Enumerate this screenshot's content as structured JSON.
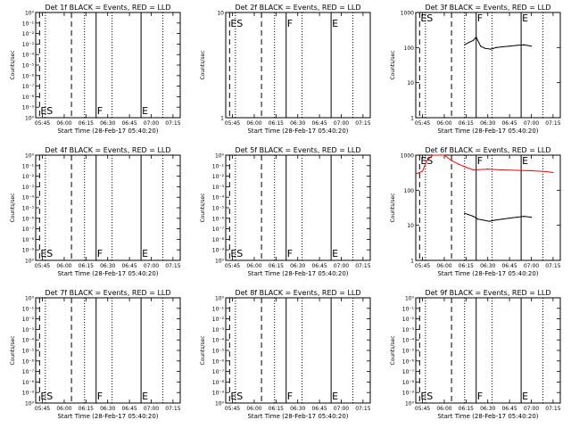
{
  "chart_data": [
    {
      "id": "1f",
      "type": "line",
      "title": "Det 1f BLACK = Events, RED = LLD",
      "ylabel": "Counts/sec",
      "xlabel": "Start Time (28-Feb-17 05:40:20)",
      "yscale": "log",
      "ylim": [
        1,
        10
      ],
      "y_ticks": [
        "10⁰",
        "10⁻¹",
        "10⁻²",
        "10⁻³",
        "10⁻⁴",
        "10⁻⁵",
        "10⁻⁶",
        "10⁻⁷",
        "10⁻⁸",
        "10⁻⁹",
        "10⁰"
      ],
      "x_ticks": [
        "05:45",
        "06:00",
        "06:15",
        "06:30",
        "06:45",
        "07:00",
        "07:15"
      ],
      "markers": [
        {
          "label": "ES",
          "style": "dashed",
          "time": "05:43"
        },
        {
          "label": "",
          "style": "dotted",
          "time": "05:47"
        },
        {
          "label": "",
          "style": "dashed",
          "time": "06:05"
        },
        {
          "label": "",
          "style": "dotted",
          "time": "06:14"
        },
        {
          "label": "F",
          "style": "solid",
          "time": "06:22"
        },
        {
          "label": "",
          "style": "dotted",
          "time": "06:33"
        },
        {
          "label": "E",
          "style": "solid",
          "time": "06:53"
        },
        {
          "label": "",
          "style": "dotted",
          "time": "07:08"
        }
      ],
      "series": []
    },
    {
      "id": "2f",
      "type": "line",
      "title": "Det 2f BLACK = Events, RED = LLD",
      "ylabel": "Counts/sec",
      "xlabel": "Start Time (28-Feb-17 05:40:20)",
      "yscale": "log",
      "ylim": [
        1,
        10
      ],
      "y_ticks": [
        "10",
        "1"
      ],
      "x_ticks": [
        "05:45",
        "06:00",
        "06:15",
        "06:30",
        "06:45",
        "07:00",
        "07:15"
      ],
      "markers": [
        {
          "label": "ES",
          "style": "dashed",
          "time": "05:43"
        },
        {
          "label": "",
          "style": "dotted",
          "time": "05:47"
        },
        {
          "label": "",
          "style": "dashed",
          "time": "06:05"
        },
        {
          "label": "",
          "style": "dotted",
          "time": "06:14"
        },
        {
          "label": "F",
          "style": "solid",
          "time": "06:22"
        },
        {
          "label": "",
          "style": "dotted",
          "time": "06:33"
        },
        {
          "label": "E",
          "style": "solid",
          "time": "06:53"
        },
        {
          "label": "",
          "style": "dotted",
          "time": "07:08"
        }
      ],
      "series": []
    },
    {
      "id": "3f",
      "type": "line",
      "title": "Det 3f BLACK = Events, RED = LLD",
      "ylabel": "Counts/sec",
      "xlabel": "Start Time (28-Feb-17 05:40:20)",
      "yscale": "log",
      "ylim": [
        1,
        1000
      ],
      "y_ticks": [
        "1000",
        "100",
        "10",
        "1"
      ],
      "x_ticks": [
        "05:45",
        "06:00",
        "06:15",
        "06:30",
        "06:45",
        "07:00",
        "07:15"
      ],
      "markers": [
        {
          "label": "ES",
          "style": "dashed",
          "time": "05:43"
        },
        {
          "label": "",
          "style": "dotted",
          "time": "05:47"
        },
        {
          "label": "",
          "style": "dashed",
          "time": "06:05"
        },
        {
          "label": "",
          "style": "dotted",
          "time": "06:14"
        },
        {
          "label": "F",
          "style": "solid",
          "time": "06:22"
        },
        {
          "label": "",
          "style": "dotted",
          "time": "06:33"
        },
        {
          "label": "E",
          "style": "solid",
          "time": "06:53"
        },
        {
          "label": "",
          "style": "dotted",
          "time": "07:08"
        }
      ],
      "series": [
        {
          "color": "#000000",
          "x": [
            "06:14",
            "06:17",
            "06:20",
            "06:22",
            "06:25",
            "06:28",
            "06:32",
            "06:36",
            "06:40",
            "06:45",
            "06:50",
            "06:55",
            "07:00"
          ],
          "y": [
            120,
            140,
            160,
            200,
            110,
            95,
            90,
            100,
            105,
            110,
            115,
            120,
            110
          ]
        }
      ]
    },
    {
      "id": "4f",
      "type": "line",
      "title": "Det 4f BLACK = Events, RED = LLD",
      "ylabel": "Counts/sec",
      "xlabel": "Start Time (28-Feb-17 05:40:20)",
      "yscale": "log",
      "ylim": [
        1,
        10
      ],
      "y_ticks": [
        "10⁰",
        "10⁻¹",
        "10⁻²",
        "10⁻³",
        "10⁻⁴",
        "10⁻⁵",
        "10⁻⁶",
        "10⁻⁷",
        "10⁻⁸",
        "10⁻⁹",
        "10⁰"
      ],
      "x_ticks": [
        "05:45",
        "06:00",
        "06:15",
        "06:30",
        "06:45",
        "07:00",
        "07:15"
      ],
      "markers": [
        {
          "label": "ES",
          "style": "dashed",
          "time": "05:43"
        },
        {
          "label": "",
          "style": "dotted",
          "time": "05:47"
        },
        {
          "label": "",
          "style": "dashed",
          "time": "06:05"
        },
        {
          "label": "",
          "style": "dotted",
          "time": "06:14"
        },
        {
          "label": "F",
          "style": "solid",
          "time": "06:22"
        },
        {
          "label": "",
          "style": "dotted",
          "time": "06:33"
        },
        {
          "label": "E",
          "style": "solid",
          "time": "06:53"
        },
        {
          "label": "",
          "style": "dotted",
          "time": "07:08"
        }
      ],
      "series": []
    },
    {
      "id": "5f",
      "type": "line",
      "title": "Det 5f BLACK = Events, RED = LLD",
      "ylabel": "Counts/sec",
      "xlabel": "Start Time (28-Feb-17 05:40:20)",
      "yscale": "log",
      "ylim": [
        1,
        10
      ],
      "y_ticks": [
        "10⁰",
        "10⁻¹",
        "10⁻²",
        "10⁻³",
        "10⁻⁴",
        "10⁻⁵",
        "10⁻⁶",
        "10⁻⁷",
        "10⁻⁸",
        "10⁻⁹",
        "10⁰"
      ],
      "x_ticks": [
        "05:45",
        "06:00",
        "06:15",
        "06:30",
        "06:45",
        "07:00",
        "07:15"
      ],
      "markers": [
        {
          "label": "ES",
          "style": "dashed",
          "time": "05:43"
        },
        {
          "label": "",
          "style": "dotted",
          "time": "05:47"
        },
        {
          "label": "",
          "style": "dashed",
          "time": "06:05"
        },
        {
          "label": "",
          "style": "dotted",
          "time": "06:14"
        },
        {
          "label": "F",
          "style": "solid",
          "time": "06:22"
        },
        {
          "label": "",
          "style": "dotted",
          "time": "06:33"
        },
        {
          "label": "E",
          "style": "solid",
          "time": "06:53"
        },
        {
          "label": "",
          "style": "dotted",
          "time": "07:08"
        }
      ],
      "series": []
    },
    {
      "id": "6f",
      "type": "line",
      "title": "Det 6f BLACK = Events, RED = LLD",
      "ylabel": "Counts/sec",
      "xlabel": "Start Time (28-Feb-17 05:40:20)",
      "yscale": "log",
      "ylim": [
        1,
        1000
      ],
      "y_ticks": [
        "1000",
        "100",
        "10",
        "1"
      ],
      "x_ticks": [
        "05:45",
        "06:00",
        "06:15",
        "06:30",
        "06:45",
        "07:00",
        "07:15"
      ],
      "markers": [
        {
          "label": "ES",
          "style": "dashed",
          "time": "05:43"
        },
        {
          "label": "",
          "style": "dotted",
          "time": "05:47"
        },
        {
          "label": "",
          "style": "dashed",
          "time": "06:05"
        },
        {
          "label": "",
          "style": "dotted",
          "time": "06:14"
        },
        {
          "label": "F",
          "style": "solid",
          "time": "06:22"
        },
        {
          "label": "",
          "style": "dotted",
          "time": "06:33"
        },
        {
          "label": "E",
          "style": "solid",
          "time": "06:53"
        },
        {
          "label": "",
          "style": "dotted",
          "time": "07:08"
        }
      ],
      "series": [
        {
          "color": "#ff0000",
          "x": [
            "05:41",
            "05:43",
            "05:45",
            "05:48",
            "05:52",
            "05:58",
            "06:00",
            "06:05",
            "06:10",
            "06:15",
            "06:20",
            "06:30",
            "06:40",
            "06:50",
            "07:00",
            "07:10",
            "07:15"
          ],
          "y": [
            300,
            320,
            350,
            700,
            1000,
            1000,
            1000,
            700,
            550,
            450,
            380,
            400,
            380,
            370,
            360,
            340,
            320
          ]
        },
        {
          "color": "#000000",
          "x": [
            "06:14",
            "06:17",
            "06:20",
            "06:23",
            "06:27",
            "06:31",
            "06:35",
            "06:40",
            "06:45",
            "06:50",
            "06:55",
            "07:00"
          ],
          "y": [
            22,
            20,
            18,
            15,
            14,
            13,
            14,
            15,
            16,
            17,
            18,
            17
          ]
        }
      ]
    },
    {
      "id": "7f",
      "type": "line",
      "title": "Det 7f BLACK = Events, RED = LLD",
      "ylabel": "Counts/sec",
      "xlabel": "Start Time (28-Feb-17 05:40:20)",
      "yscale": "log",
      "ylim": [
        1,
        10
      ],
      "y_ticks": [
        "10⁰",
        "10⁻¹",
        "10⁻²",
        "10⁻³",
        "10⁻⁴",
        "10⁻⁵",
        "10⁻⁶",
        "10⁻⁷",
        "10⁻⁸",
        "10⁻⁹",
        "10⁰"
      ],
      "x_ticks": [
        "05:45",
        "06:00",
        "06:15",
        "06:30",
        "06:45",
        "07:00",
        "07:15"
      ],
      "markers": [
        {
          "label": "ES",
          "style": "dashed",
          "time": "05:43"
        },
        {
          "label": "",
          "style": "dotted",
          "time": "05:47"
        },
        {
          "label": "",
          "style": "dashed",
          "time": "06:05"
        },
        {
          "label": "",
          "style": "dotted",
          "time": "06:14"
        },
        {
          "label": "F",
          "style": "solid",
          "time": "06:22"
        },
        {
          "label": "",
          "style": "dotted",
          "time": "06:33"
        },
        {
          "label": "E",
          "style": "solid",
          "time": "06:53"
        },
        {
          "label": "",
          "style": "dotted",
          "time": "07:08"
        }
      ],
      "series": []
    },
    {
      "id": "8f",
      "type": "line",
      "title": "Det 8f BLACK = Events, RED = LLD",
      "ylabel": "Counts/sec",
      "xlabel": "Start Time (28-Feb-17 05:40:20)",
      "yscale": "log",
      "ylim": [
        1,
        10
      ],
      "y_ticks": [
        "10⁰",
        "10⁻¹",
        "10⁻²",
        "10⁻³",
        "10⁻⁴",
        "10⁻⁵",
        "10⁻⁶",
        "10⁻⁷",
        "10⁻⁸",
        "10⁻⁹",
        "10⁰"
      ],
      "x_ticks": [
        "05:45",
        "06:00",
        "06:15",
        "06:30",
        "06:45",
        "07:00",
        "07:15"
      ],
      "markers": [
        {
          "label": "ES",
          "style": "dashed",
          "time": "05:43"
        },
        {
          "label": "",
          "style": "dotted",
          "time": "05:47"
        },
        {
          "label": "",
          "style": "dashed",
          "time": "06:05"
        },
        {
          "label": "",
          "style": "dotted",
          "time": "06:14"
        },
        {
          "label": "F",
          "style": "solid",
          "time": "06:22"
        },
        {
          "label": "",
          "style": "dotted",
          "time": "06:33"
        },
        {
          "label": "E",
          "style": "solid",
          "time": "06:53"
        },
        {
          "label": "",
          "style": "dotted",
          "time": "07:08"
        }
      ],
      "series": []
    },
    {
      "id": "9f",
      "type": "line",
      "title": "Det 9f BLACK = Events, RED = LLD",
      "ylabel": "Counts/sec",
      "xlabel": "Start Time (28-Feb-17 05:40:20)",
      "yscale": "log",
      "ylim": [
        1,
        10
      ],
      "y_ticks": [
        "10⁰",
        "10⁻¹",
        "10⁻²",
        "10⁻³",
        "10⁻⁴",
        "10⁻⁵",
        "10⁻⁶",
        "10⁻⁷",
        "10⁻⁸",
        "10⁻⁹",
        "10⁰"
      ],
      "x_ticks": [
        "05:45",
        "06:00",
        "06:15",
        "06:30",
        "06:45",
        "07:00",
        "07:15"
      ],
      "markers": [
        {
          "label": "ES",
          "style": "dashed",
          "time": "05:43"
        },
        {
          "label": "",
          "style": "dotted",
          "time": "05:47"
        },
        {
          "label": "",
          "style": "dashed",
          "time": "06:05"
        },
        {
          "label": "",
          "style": "dotted",
          "time": "06:14"
        },
        {
          "label": "F",
          "style": "solid",
          "time": "06:22"
        },
        {
          "label": "",
          "style": "dotted",
          "time": "06:33"
        },
        {
          "label": "E",
          "style": "solid",
          "time": "06:53"
        },
        {
          "label": "",
          "style": "dotted",
          "time": "07:08"
        }
      ],
      "series": []
    }
  ]
}
